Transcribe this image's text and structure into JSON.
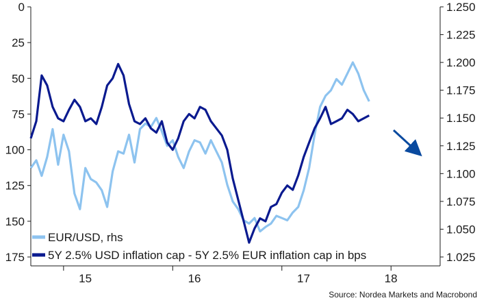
{
  "chart_data": {
    "type": "line",
    "title": "",
    "source": "Source: Nordea Markets and Macrobond",
    "x_ticks": [
      "15",
      "16",
      "17",
      "18"
    ],
    "y_left": {
      "inverted": true,
      "range": [
        0,
        175
      ],
      "ticks": [
        "0",
        "25",
        "50",
        "75",
        "100",
        "125",
        "150",
        "175"
      ],
      "tick_values": [
        0,
        25,
        50,
        75,
        100,
        125,
        150,
        175
      ]
    },
    "y_right": {
      "range": [
        1.025,
        1.25
      ],
      "ticks": [
        "1.250",
        "1.225",
        "1.200",
        "1.175",
        "1.150",
        "1.125",
        "1.100",
        "1.075",
        "1.050",
        "1.025"
      ],
      "tick_values": [
        1.25,
        1.225,
        1.2,
        1.175,
        1.15,
        1.125,
        1.1,
        1.075,
        1.05,
        1.025
      ]
    },
    "x_range": [
      2014.7,
      2018.45
    ],
    "series": [
      {
        "name": "EUR/USD, rhs",
        "axis": "right",
        "color": "#8dc3ef",
        "x": [
          2014.7,
          2014.75,
          2014.8,
          2014.85,
          2014.9,
          2014.95,
          2015.0,
          2015.05,
          2015.1,
          2015.15,
          2015.2,
          2015.25,
          2015.3,
          2015.35,
          2015.4,
          2015.45,
          2015.5,
          2015.55,
          2015.6,
          2015.65,
          2015.7,
          2015.75,
          2015.8,
          2015.85,
          2015.9,
          2015.95,
          2016.0,
          2016.05,
          2016.1,
          2016.15,
          2016.2,
          2016.25,
          2016.3,
          2016.35,
          2016.4,
          2016.45,
          2016.5,
          2016.55,
          2016.6,
          2016.65,
          2016.7,
          2016.75,
          2016.8,
          2016.85,
          2016.9,
          2016.95,
          2017.0,
          2017.05,
          2017.1,
          2017.15,
          2017.2,
          2017.25,
          2017.3,
          2017.35,
          2017.4,
          2017.45,
          2017.5,
          2017.55,
          2017.6,
          2017.65,
          2017.7,
          2017.75,
          2017.8
        ],
        "y": [
          1.105,
          1.112,
          1.098,
          1.115,
          1.14,
          1.108,
          1.135,
          1.12,
          1.082,
          1.068,
          1.105,
          1.095,
          1.092,
          1.085,
          1.07,
          1.102,
          1.12,
          1.118,
          1.135,
          1.11,
          1.14,
          1.145,
          1.142,
          1.15,
          1.138,
          1.125,
          1.13,
          1.115,
          1.105,
          1.12,
          1.13,
          1.128,
          1.118,
          1.13,
          1.12,
          1.11,
          1.09,
          1.075,
          1.068,
          1.058,
          1.055,
          1.06,
          1.048,
          1.052,
          1.055,
          1.062,
          1.06,
          1.058,
          1.065,
          1.07,
          1.085,
          1.105,
          1.135,
          1.16,
          1.17,
          1.175,
          1.185,
          1.18,
          1.19,
          1.2,
          1.19,
          1.175,
          1.165
        ]
      },
      {
        "name": "5Y 2.5% USD inflation cap - 5Y 2.5% EUR inflation cap in bps",
        "axis": "left",
        "color": "#0a1a8f",
        "x": [
          2014.7,
          2014.75,
          2014.8,
          2014.85,
          2014.9,
          2014.95,
          2015.0,
          2015.05,
          2015.1,
          2015.15,
          2015.2,
          2015.25,
          2015.3,
          2015.35,
          2015.4,
          2015.45,
          2015.5,
          2015.55,
          2015.6,
          2015.65,
          2015.7,
          2015.75,
          2015.8,
          2015.85,
          2015.9,
          2015.95,
          2016.0,
          2016.05,
          2016.1,
          2016.15,
          2016.2,
          2016.25,
          2016.3,
          2016.35,
          2016.4,
          2016.45,
          2016.5,
          2016.55,
          2016.6,
          2016.65,
          2016.7,
          2016.75,
          2016.8,
          2016.85,
          2016.9,
          2016.95,
          2017.0,
          2017.05,
          2017.1,
          2017.15,
          2017.2,
          2017.25,
          2017.3,
          2017.35,
          2017.4,
          2017.45,
          2017.5,
          2017.55,
          2017.6,
          2017.65,
          2017.7,
          2017.75,
          2017.8
        ],
        "y": [
          92,
          80,
          48,
          55,
          70,
          78,
          80,
          72,
          65,
          70,
          80,
          78,
          82,
          70,
          55,
          50,
          40,
          48,
          68,
          80,
          82,
          78,
          85,
          88,
          80,
          95,
          100,
          92,
          80,
          75,
          78,
          70,
          72,
          80,
          85,
          90,
          100,
          120,
          135,
          150,
          165,
          155,
          148,
          150,
          140,
          138,
          130,
          125,
          128,
          118,
          105,
          95,
          85,
          78,
          70,
          82,
          80,
          78,
          72,
          75,
          80,
          78,
          76
        ]
      }
    ],
    "legend_position": "bottom-left",
    "annotation": "arrow pointing down-right after last data point",
    "grid": false
  }
}
